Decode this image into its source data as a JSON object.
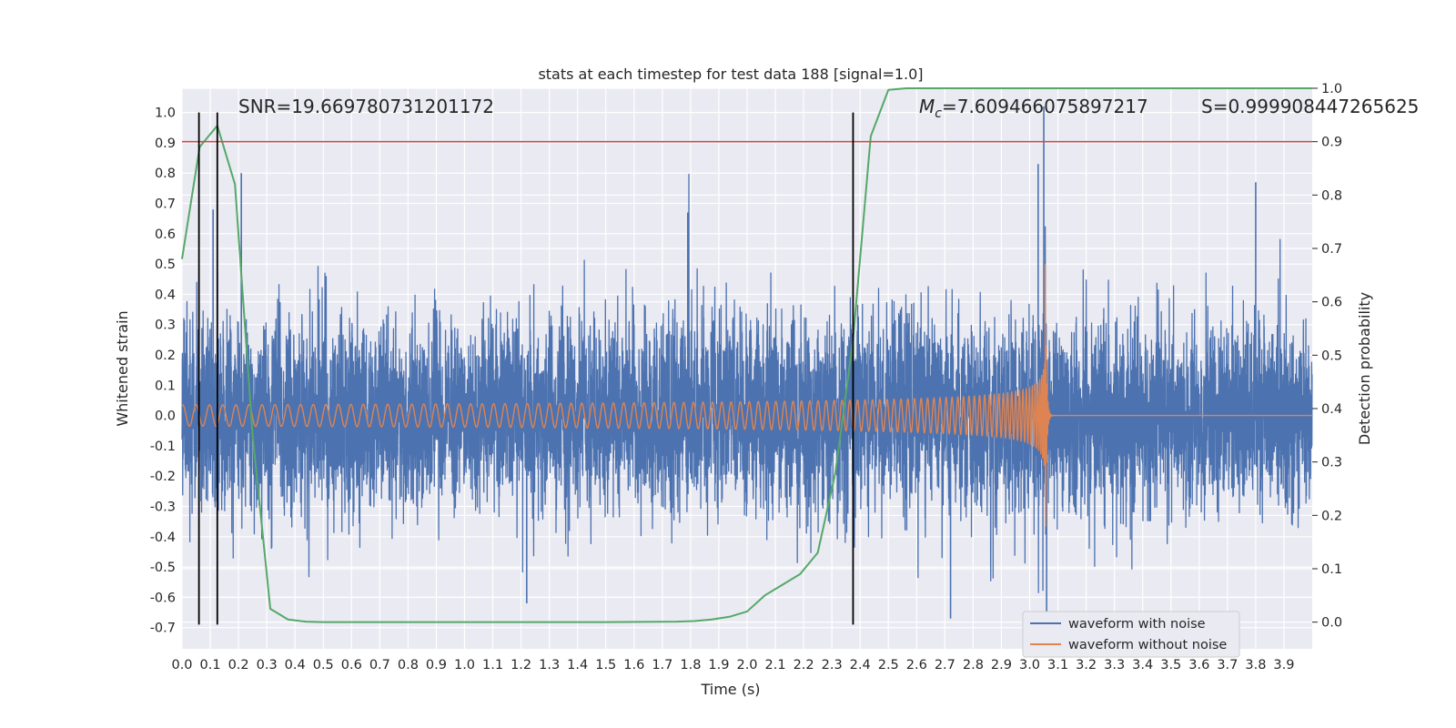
{
  "chart_data": {
    "type": "line",
    "title": "stats at each timestep for test data 188 [signal=1.0]",
    "xlabel": "Time (s)",
    "ylabel": "Whitened strain",
    "y2label": "Detection probability",
    "xlim": [
      0.0,
      4.0
    ],
    "ylim": [
      -0.77,
      1.08
    ],
    "y2lim": [
      -0.05,
      1.0
    ],
    "x_ticks": [
      0.0,
      0.1,
      0.2,
      0.3,
      0.4,
      0.5,
      0.6,
      0.7,
      0.8,
      0.9,
      1.0,
      1.1,
      1.2,
      1.3,
      1.4,
      1.5,
      1.6,
      1.7,
      1.8,
      1.9,
      2.0,
      2.1,
      2.2,
      2.3,
      2.4,
      2.5,
      2.6,
      2.7,
      2.8,
      2.9,
      3.0,
      3.1,
      3.2,
      3.3,
      3.4,
      3.5,
      3.6,
      3.7,
      3.8,
      3.9
    ],
    "y_ticks": [
      -0.7,
      -0.6,
      -0.5,
      -0.4,
      -0.3,
      -0.2,
      -0.1,
      0.0,
      0.1,
      0.2,
      0.3,
      0.4,
      0.5,
      0.6,
      0.7,
      0.8,
      0.9,
      1.0
    ],
    "y2_ticks": [
      0.0,
      0.1,
      0.2,
      0.3,
      0.4,
      0.5,
      0.6,
      0.7,
      0.8,
      0.9,
      1.0
    ],
    "grid": true,
    "legend": "bottom-right",
    "annotations": {
      "snr": "SNR=19.669780731201172",
      "mc_symbol": "M",
      "mc_sub": "c",
      "mc_value": "=7.609466075897217",
      "s": "S=0.999908447265625"
    },
    "threshold_line": {
      "axis": "y2",
      "value": 0.9,
      "color": "#c44e52"
    },
    "vertical_lines": [
      0.06,
      0.125,
      2.375
    ],
    "series": [
      {
        "name": "waveform with noise",
        "axis": "y",
        "color": "#4c72b0",
        "noise_sigma": 0.15,
        "spikes": [
          [
            0.11,
            0.68
          ],
          [
            0.125,
            0.47
          ],
          [
            0.21,
            0.8
          ],
          [
            1.79,
            0.67
          ],
          [
            2.72,
            -0.67
          ],
          [
            3.03,
            0.83
          ],
          [
            3.05,
            1.02
          ],
          [
            3.06,
            -0.65
          ],
          [
            3.8,
            0.77
          ],
          [
            1.22,
            -0.62
          ]
        ]
      },
      {
        "name": "waveform without noise",
        "axis": "y",
        "color": "#dd8452",
        "chirp": {
          "amplitude_start": 0.035,
          "amplitude_end": 0.55,
          "merger_time": 3.055,
          "start_frequency": 21,
          "merger_frequency": 300
        }
      },
      {
        "name": "detection probability",
        "axis": "y2",
        "color": "#55a868",
        "points": [
          [
            0.0,
            0.68
          ],
          [
            0.0625,
            0.89
          ],
          [
            0.125,
            0.93
          ],
          [
            0.1875,
            0.82
          ],
          [
            0.25,
            0.35
          ],
          [
            0.3125,
            0.025
          ],
          [
            0.375,
            0.005
          ],
          [
            0.4375,
            0.001
          ],
          [
            0.5,
            0.0
          ],
          [
            1.5,
            0.0
          ],
          [
            1.75,
            0.001
          ],
          [
            1.8125,
            0.002
          ],
          [
            1.875,
            0.005
          ],
          [
            1.9375,
            0.01
          ],
          [
            2.0,
            0.02
          ],
          [
            2.0625,
            0.05
          ],
          [
            2.125,
            0.07
          ],
          [
            2.1875,
            0.09
          ],
          [
            2.25,
            0.13
          ],
          [
            2.3125,
            0.28
          ],
          [
            2.375,
            0.53
          ],
          [
            2.4375,
            0.91
          ],
          [
            2.5,
            0.997
          ],
          [
            2.5625,
            1.0
          ],
          [
            3.9,
            1.0
          ],
          [
            4.0,
            1.0
          ]
        ]
      }
    ]
  }
}
